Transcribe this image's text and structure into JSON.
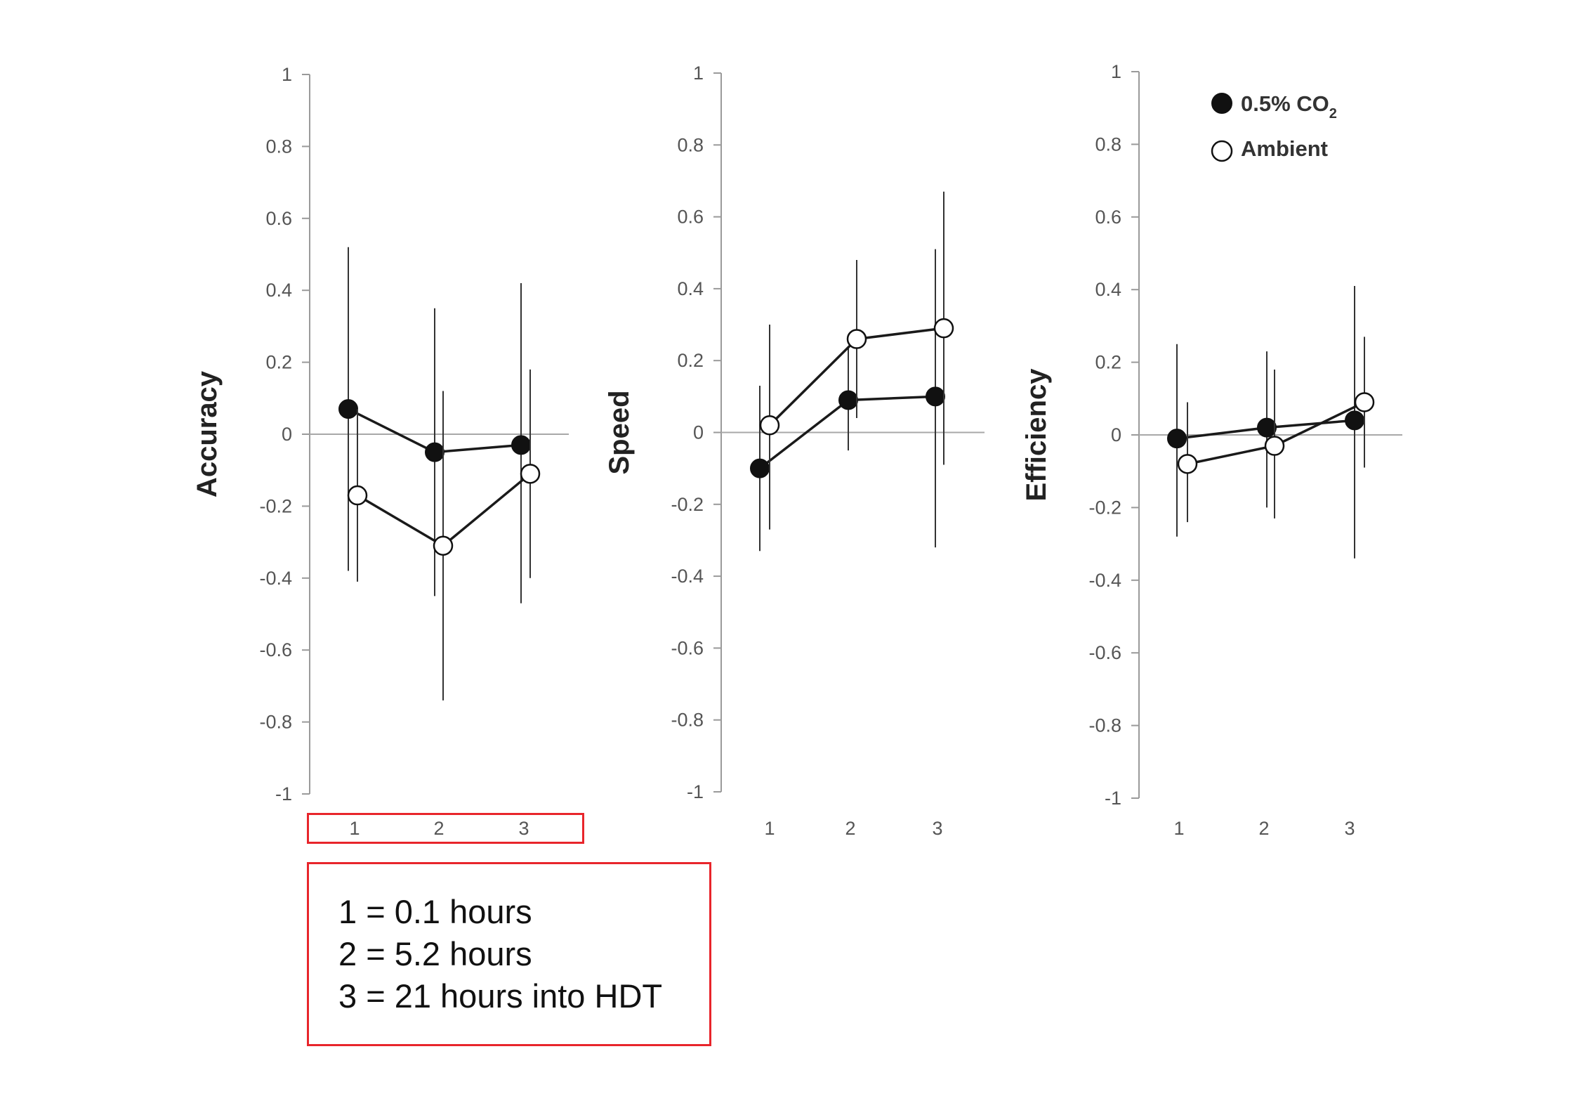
{
  "chart_data": [
    {
      "type": "line",
      "ylabel": "Accuracy",
      "ylim": [
        -1,
        1
      ],
      "yticks": [
        "1",
        "0.8",
        "0.6",
        "0.4",
        "0.2",
        "0",
        "-0.2",
        "-0.4",
        "-0.6",
        "-0.8",
        "-1"
      ],
      "categories": [
        "1",
        "2",
        "3"
      ],
      "series": [
        {
          "name": "0.5% CO2",
          "marker": "filled",
          "values": [
            0.07,
            -0.05,
            -0.03
          ],
          "err_low": [
            -0.38,
            -0.45,
            -0.47
          ],
          "err_high": [
            0.52,
            0.35,
            0.42
          ]
        },
        {
          "name": "Ambient",
          "marker": "open",
          "values": [
            -0.17,
            -0.31,
            -0.11
          ],
          "err_low": [
            -0.41,
            -0.74,
            -0.4
          ],
          "err_high": [
            0.07,
            0.12,
            0.18
          ]
        }
      ]
    },
    {
      "type": "line",
      "ylabel": "Speed",
      "ylim": [
        -1,
        1
      ],
      "yticks": [
        "1",
        "0.8",
        "0.6",
        "0.4",
        "0.2",
        "0",
        "-0.2",
        "-0.4",
        "-0.6",
        "-0.8",
        "-1"
      ],
      "categories": [
        "1",
        "2",
        "3"
      ],
      "series": [
        {
          "name": "0.5% CO2",
          "marker": "filled",
          "values": [
            -0.1,
            0.09,
            0.1
          ],
          "err_low": [
            -0.33,
            -0.05,
            -0.32
          ],
          "err_high": [
            0.13,
            0.24,
            0.51
          ]
        },
        {
          "name": "Ambient",
          "marker": "open",
          "values": [
            0.02,
            0.26,
            0.29
          ],
          "err_low": [
            -0.27,
            0.04,
            -0.09
          ],
          "err_high": [
            0.3,
            0.48,
            0.67
          ]
        }
      ]
    },
    {
      "type": "line",
      "ylabel": "Efficiency",
      "ylim": [
        -1,
        1
      ],
      "yticks": [
        "1",
        "0.8",
        "0.6",
        "0.4",
        "0.2",
        "0",
        "-0.2",
        "-0.4",
        "-0.6",
        "-0.8",
        "-1"
      ],
      "categories": [
        "1",
        "2",
        "3"
      ],
      "series": [
        {
          "name": "0.5% CO2",
          "marker": "filled",
          "values": [
            -0.01,
            0.02,
            0.04
          ],
          "err_low": [
            -0.28,
            -0.2,
            -0.34
          ],
          "err_high": [
            0.25,
            0.23,
            0.41
          ]
        },
        {
          "name": "Ambient",
          "marker": "open",
          "values": [
            -0.08,
            -0.03,
            0.09
          ],
          "err_low": [
            -0.24,
            -0.23,
            -0.09
          ],
          "err_high": [
            0.09,
            0.18,
            0.27
          ]
        }
      ]
    }
  ],
  "legend": {
    "placement": "top-right",
    "items": [
      {
        "marker": "filled",
        "label": "0.5% CO",
        "subscript": "2"
      },
      {
        "marker": "open",
        "label": "Ambient"
      }
    ]
  },
  "note": {
    "lines": [
      "1 = 0.1 hours",
      "2 = 5.2 hours",
      "3 = 21 hours into HDT"
    ],
    "border_color": "#e8252b"
  }
}
